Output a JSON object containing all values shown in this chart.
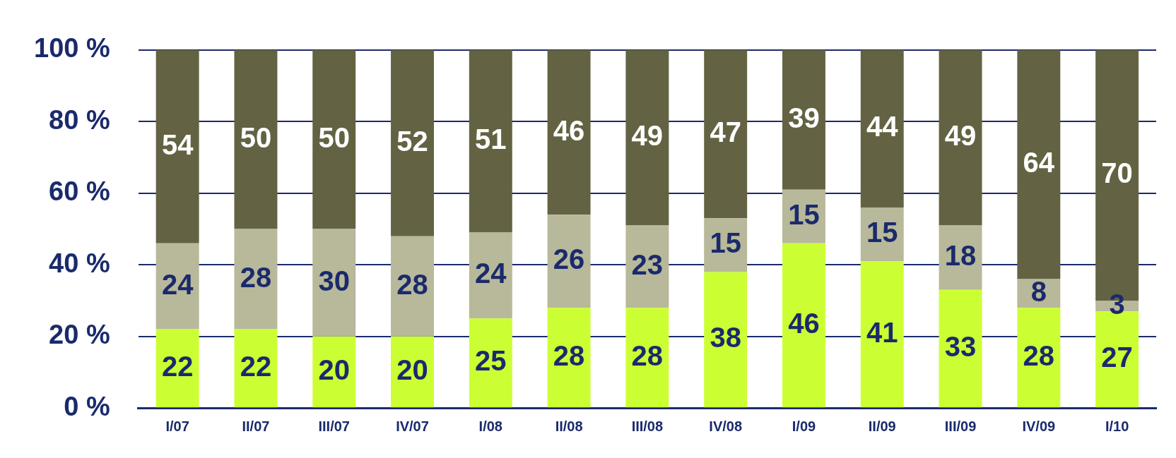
{
  "chart_data": {
    "type": "bar",
    "stacked": true,
    "data_labels": true,
    "grid": "y",
    "legend": false,
    "categories": [
      "I/07",
      "II/07",
      "III/07",
      "IV/07",
      "I/08",
      "II/08",
      "III/08",
      "IV/08",
      "I/09",
      "II/09",
      "III/09",
      "IV/09",
      "I/10"
    ],
    "series": [
      {
        "color": "#ccff33",
        "values": [
          22,
          22,
          20,
          20,
          25,
          28,
          28,
          38,
          46,
          41,
          33,
          28,
          27
        ]
      },
      {
        "color": "#b8b89a",
        "values": [
          24,
          28,
          30,
          28,
          24,
          26,
          23,
          15,
          15,
          15,
          18,
          8,
          3
        ]
      },
      {
        "color": "#636343",
        "values": [
          54,
          50,
          50,
          52,
          51,
          46,
          49,
          47,
          39,
          44,
          49,
          64,
          70
        ]
      }
    ],
    "ylim": [
      0,
      100
    ],
    "yticks": [
      {
        "value": 0,
        "label": "0 %"
      },
      {
        "value": 20,
        "label": "20 %"
      },
      {
        "value": 40,
        "label": "40 %"
      },
      {
        "value": 60,
        "label": "60 %"
      },
      {
        "value": 80,
        "label": "80 %"
      },
      {
        "value": 100,
        "label": "100 %"
      }
    ]
  }
}
